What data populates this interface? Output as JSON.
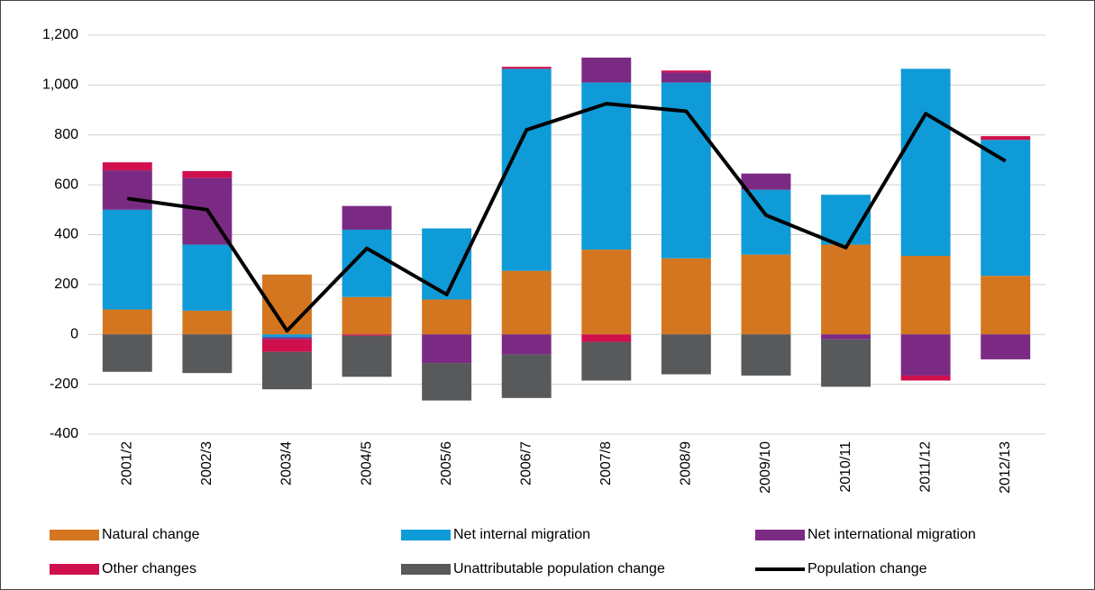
{
  "chart_data": {
    "type": "bar",
    "stacked": true,
    "categories": [
      "2001/2",
      "2002/3",
      "2003/4",
      "2004/5",
      "2005/6",
      "2006/7",
      "2007/8",
      "2008/9",
      "2009/10",
      "2010/11",
      "2011/12",
      "2012/13"
    ],
    "series": [
      {
        "name": "Natural change",
        "color": "#d4761f",
        "values": [
          100,
          95,
          240,
          150,
          140,
          255,
          340,
          305,
          320,
          360,
          315,
          235
        ]
      },
      {
        "name": "Net internal migration",
        "color": "#0f9bd7",
        "values": [
          400,
          265,
          -12,
          270,
          285,
          810,
          670,
          705,
          260,
          200,
          750,
          545
        ]
      },
      {
        "name": "Net international migration",
        "color": "#7b2a83",
        "values": [
          158,
          268,
          -8,
          95,
          -115,
          -80,
          100,
          40,
          65,
          -20,
          -165,
          -100
        ]
      },
      {
        "name": "Other changes",
        "color": "#d0104c",
        "values": [
          32,
          27,
          -50,
          -5,
          0,
          8,
          -30,
          8,
          0,
          0,
          -20,
          15
        ]
      },
      {
        "name": "Unattributable population change",
        "color": "#58595b",
        "values": [
          -150,
          -155,
          -150,
          -165,
          -150,
          -175,
          -155,
          -160,
          -165,
          -190,
          0,
          0
        ]
      },
      {
        "name": "Population change",
        "type": "line",
        "color": "#000000",
        "values": [
          545,
          500,
          15,
          345,
          160,
          820,
          925,
          895,
          478,
          348,
          885,
          695
        ]
      }
    ],
    "ylim": [
      -400,
      1200
    ],
    "yticks": [
      -400,
      -200,
      0,
      200,
      400,
      600,
      800,
      {
        "value": 1000,
        "label": "1,000"
      },
      {
        "value": 1200,
        "label": "1,200"
      }
    ],
    "grid": true
  }
}
